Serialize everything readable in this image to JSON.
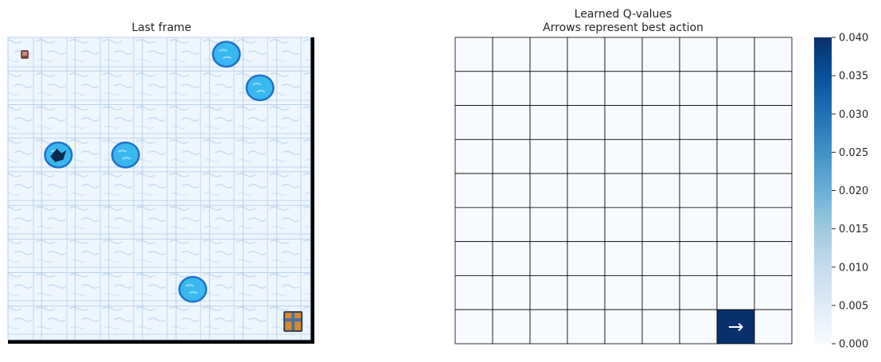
{
  "left_panel": {
    "title": "Last frame",
    "grid_size": 9,
    "player": {
      "row": 0,
      "col": 0
    },
    "goal": {
      "row": 8,
      "col": 8
    },
    "holes": [
      {
        "row": 0,
        "col": 6,
        "cracked": false
      },
      {
        "row": 1,
        "col": 7,
        "cracked": false
      },
      {
        "row": 3,
        "col": 1,
        "cracked": true
      },
      {
        "row": 3,
        "col": 3,
        "cracked": false
      },
      {
        "row": 7,
        "col": 5,
        "cracked": false
      }
    ]
  },
  "chart_data": {
    "type": "heatmap",
    "title": "Learned Q-values",
    "subtitle": "Arrows represent best action",
    "rows": 9,
    "cols": 9,
    "values": [
      [
        0,
        0,
        0,
        0,
        0,
        0,
        0,
        0,
        0
      ],
      [
        0,
        0,
        0,
        0,
        0,
        0,
        0,
        0,
        0
      ],
      [
        0,
        0,
        0,
        0,
        0,
        0,
        0,
        0,
        0
      ],
      [
        0,
        0,
        0,
        0,
        0,
        0,
        0,
        0,
        0
      ],
      [
        0,
        0,
        0,
        0,
        0,
        0,
        0,
        0,
        0
      ],
      [
        0,
        0,
        0,
        0,
        0,
        0,
        0,
        0,
        0
      ],
      [
        0,
        0,
        0,
        0,
        0,
        0,
        0,
        0,
        0
      ],
      [
        0,
        0,
        0,
        0,
        0,
        0,
        0,
        0,
        0
      ],
      [
        0,
        0,
        0,
        0,
        0,
        0,
        0,
        0.04,
        0
      ]
    ],
    "arrows": [
      {
        "row": 8,
        "col": 7,
        "symbol": "→"
      }
    ],
    "colormap": "Blues",
    "colorbar": {
      "vmin": 0,
      "vmax": 0.04,
      "ticks": [
        "0.000",
        "0.005",
        "0.010",
        "0.015",
        "0.020",
        "0.025",
        "0.030",
        "0.035",
        "0.040"
      ]
    }
  }
}
